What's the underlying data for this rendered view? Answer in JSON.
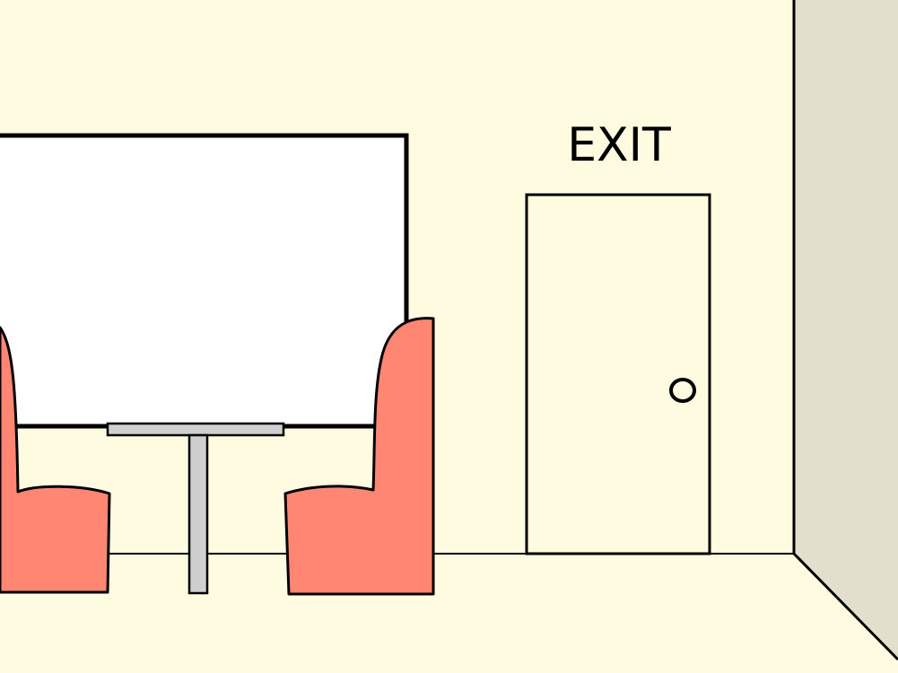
{
  "scene": {
    "exit_sign": "EXIT",
    "colors": {
      "wall": "#fffbe0",
      "side_wall": "#e2dfcd",
      "booth": "#ff8673",
      "table": "#cfcfcf",
      "window": "#ffffff",
      "outline": "#000000"
    },
    "icons": {
      "door": "door-icon",
      "door_knob": "door-knob-icon",
      "window": "window-icon",
      "table": "table-icon",
      "booth_seat": "booth-seat-icon"
    }
  }
}
